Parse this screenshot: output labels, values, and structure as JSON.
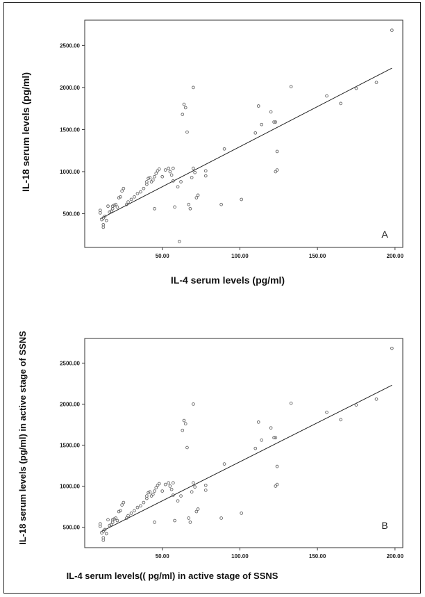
{
  "chart_data": [
    {
      "type": "scatter",
      "panel_label": "A",
      "xlabel": "IL-4 serum levels (pg/ml)",
      "ylabel": "IL-18 serum levels (pg/ml)",
      "xlim": [
        0,
        205
      ],
      "ylim": [
        100,
        2800
      ],
      "x_ticks": [
        50,
        100,
        150,
        200
      ],
      "x_tick_labels": [
        "50.00",
        "100.00",
        "150.00",
        "200.00"
      ],
      "y_ticks": [
        500,
        1000,
        1500,
        2000,
        2500
      ],
      "y_tick_labels": [
        "500.00",
        "1000.00",
        "1500.00",
        "2000.00",
        "2500.00"
      ],
      "regression_line": {
        "x": [
          10,
          198
        ],
        "y": [
          440,
          2230
        ]
      },
      "points": [
        [
          10,
          510
        ],
        [
          10,
          540
        ],
        [
          11,
          430
        ],
        [
          12,
          450
        ],
        [
          12,
          370
        ],
        [
          12,
          340
        ],
        [
          13,
          470
        ],
        [
          14,
          420
        ],
        [
          15,
          590
        ],
        [
          16,
          520
        ],
        [
          17,
          530
        ],
        [
          18,
          560
        ],
        [
          18,
          590
        ],
        [
          19,
          600
        ],
        [
          20,
          610
        ],
        [
          21,
          580
        ],
        [
          22,
          690
        ],
        [
          23,
          700
        ],
        [
          24,
          770
        ],
        [
          25,
          800
        ],
        [
          27,
          610
        ],
        [
          28,
          640
        ],
        [
          30,
          670
        ],
        [
          32,
          700
        ],
        [
          34,
          740
        ],
        [
          36,
          760
        ],
        [
          38,
          800
        ],
        [
          40,
          850
        ],
        [
          40,
          880
        ],
        [
          41,
          920
        ],
        [
          42,
          930
        ],
        [
          43,
          880
        ],
        [
          44,
          900
        ],
        [
          45,
          940
        ],
        [
          46,
          980
        ],
        [
          47,
          1010
        ],
        [
          48,
          1030
        ],
        [
          50,
          940
        ],
        [
          52,
          1020
        ],
        [
          54,
          1040
        ],
        [
          55,
          1000
        ],
        [
          56,
          960
        ],
        [
          57,
          1040
        ],
        [
          57,
          890
        ],
        [
          45,
          560
        ],
        [
          58,
          580
        ],
        [
          60,
          820
        ],
        [
          62,
          880
        ],
        [
          61,
          170
        ],
        [
          63,
          1680
        ],
        [
          64,
          1800
        ],
        [
          65,
          1760
        ],
        [
          66,
          1470
        ],
        [
          67,
          610
        ],
        [
          68,
          560
        ],
        [
          69,
          930
        ],
        [
          70,
          1040
        ],
        [
          70,
          2000
        ],
        [
          71,
          990
        ],
        [
          72,
          690
        ],
        [
          73,
          720
        ],
        [
          78,
          1010
        ],
        [
          78,
          950
        ],
        [
          88,
          610
        ],
        [
          90,
          1270
        ],
        [
          101,
          670
        ],
        [
          110,
          1460
        ],
        [
          112,
          1780
        ],
        [
          114,
          1560
        ],
        [
          120,
          1710
        ],
        [
          122,
          1590
        ],
        [
          123,
          1590
        ],
        [
          123,
          1000
        ],
        [
          124,
          1240
        ],
        [
          124,
          1020
        ],
        [
          133,
          2010
        ],
        [
          156,
          1900
        ],
        [
          165,
          1810
        ],
        [
          175,
          1990
        ],
        [
          188,
          2060
        ],
        [
          198,
          2680
        ]
      ]
    },
    {
      "type": "scatter",
      "panel_label": "B",
      "xlabel": "IL-4 serum levels(( pg/ml) in active stage of SSNS",
      "ylabel": "IL-18 serum levels (pg/ml) in active stage of SSNS",
      "xlim": [
        0,
        205
      ],
      "ylim": [
        250,
        2800
      ],
      "x_ticks": [
        50,
        100,
        150,
        200
      ],
      "x_tick_labels": [
        "50.00",
        "100.00",
        "150.00",
        "200.00"
      ],
      "y_ticks": [
        500,
        1000,
        1500,
        2000,
        2500
      ],
      "y_tick_labels": [
        "500.00",
        "1000.00",
        "1500.00",
        "2000.00",
        "2500.00"
      ],
      "regression_line": {
        "x": [
          10,
          198
        ],
        "y": [
          440,
          2230
        ]
      },
      "points": [
        [
          10,
          510
        ],
        [
          10,
          540
        ],
        [
          11,
          430
        ],
        [
          12,
          450
        ],
        [
          12,
          370
        ],
        [
          12,
          340
        ],
        [
          13,
          470
        ],
        [
          14,
          420
        ],
        [
          15,
          590
        ],
        [
          16,
          520
        ],
        [
          17,
          530
        ],
        [
          18,
          560
        ],
        [
          18,
          590
        ],
        [
          19,
          600
        ],
        [
          20,
          610
        ],
        [
          21,
          580
        ],
        [
          22,
          690
        ],
        [
          23,
          700
        ],
        [
          24,
          770
        ],
        [
          25,
          800
        ],
        [
          27,
          610
        ],
        [
          28,
          640
        ],
        [
          30,
          670
        ],
        [
          32,
          700
        ],
        [
          34,
          740
        ],
        [
          36,
          760
        ],
        [
          38,
          800
        ],
        [
          40,
          850
        ],
        [
          40,
          880
        ],
        [
          41,
          920
        ],
        [
          42,
          930
        ],
        [
          43,
          880
        ],
        [
          44,
          900
        ],
        [
          45,
          940
        ],
        [
          46,
          980
        ],
        [
          47,
          1010
        ],
        [
          48,
          1030
        ],
        [
          50,
          940
        ],
        [
          52,
          1020
        ],
        [
          54,
          1040
        ],
        [
          55,
          1000
        ],
        [
          56,
          960
        ],
        [
          57,
          1040
        ],
        [
          57,
          890
        ],
        [
          45,
          560
        ],
        [
          58,
          580
        ],
        [
          60,
          820
        ],
        [
          62,
          880
        ],
        [
          63,
          1680
        ],
        [
          64,
          1800
        ],
        [
          65,
          1760
        ],
        [
          66,
          1470
        ],
        [
          67,
          610
        ],
        [
          68,
          560
        ],
        [
          69,
          930
        ],
        [
          70,
          1040
        ],
        [
          70,
          2000
        ],
        [
          71,
          990
        ],
        [
          72,
          690
        ],
        [
          73,
          720
        ],
        [
          78,
          1010
        ],
        [
          78,
          950
        ],
        [
          88,
          610
        ],
        [
          90,
          1270
        ],
        [
          101,
          670
        ],
        [
          110,
          1460
        ],
        [
          112,
          1780
        ],
        [
          114,
          1560
        ],
        [
          120,
          1710
        ],
        [
          122,
          1590
        ],
        [
          123,
          1590
        ],
        [
          123,
          1000
        ],
        [
          124,
          1240
        ],
        [
          124,
          1020
        ],
        [
          133,
          2010
        ],
        [
          156,
          1900
        ],
        [
          165,
          1810
        ],
        [
          175,
          1990
        ],
        [
          188,
          2060
        ],
        [
          198,
          2680
        ]
      ]
    }
  ]
}
